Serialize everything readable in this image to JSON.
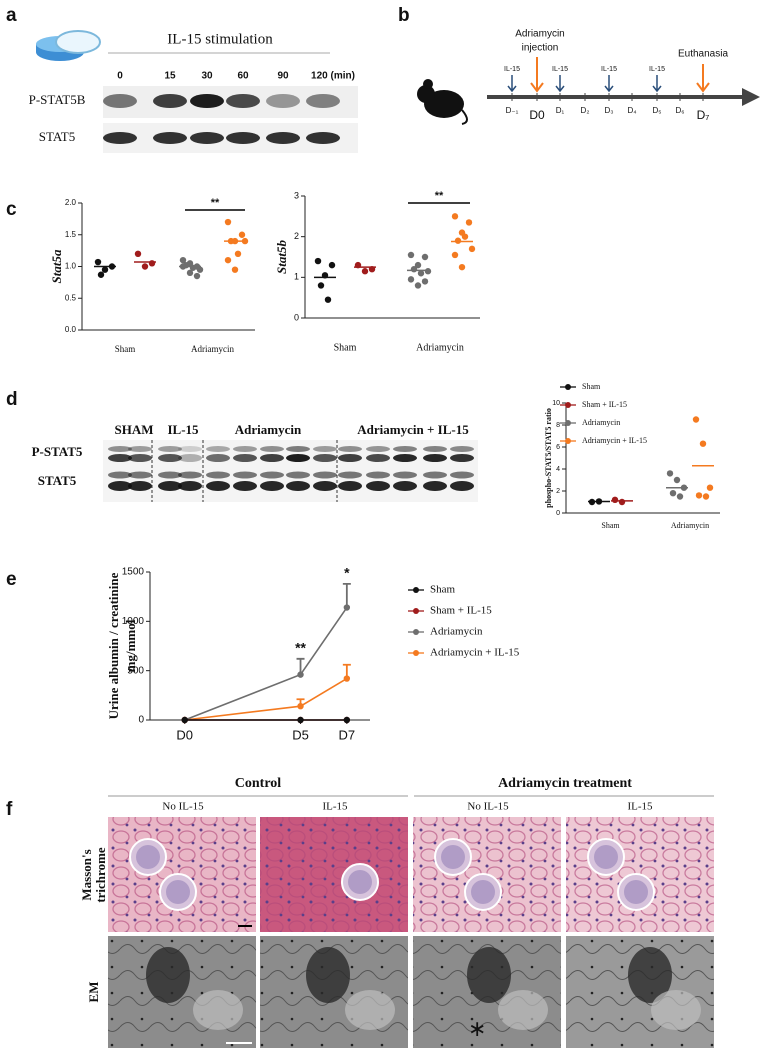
{
  "panel_a": {
    "label": "a",
    "title": "IL-15 stimulation",
    "timepoints": [
      "0",
      "15",
      "30",
      "60",
      "90",
      "120 (min)"
    ],
    "rows": [
      "P-STAT5B",
      "STAT5"
    ]
  },
  "panel_b": {
    "label": "b",
    "injection": [
      "Adriamycin",
      "injection"
    ],
    "euthanasia": "Euthanasia",
    "il15_marks": [
      "IL-15",
      "IL-15",
      "IL-15",
      "IL-15"
    ],
    "days": [
      "D₋₁",
      "D0",
      "D₁",
      "D₂",
      "D₃",
      "D₄",
      "D₅",
      "D₆",
      "D₇"
    ]
  },
  "panel_c": {
    "label": "c"
  },
  "panel_d": {
    "label": "d",
    "blot_groups": [
      "SHAM",
      "IL-15",
      "Adriamycin",
      "Adriamycin + IL-15"
    ],
    "rows": [
      "P-STAT5",
      "STAT5"
    ]
  },
  "panel_e": {
    "label": "e"
  },
  "panel_f": {
    "label": "f",
    "conditions": [
      "Control",
      "Adriamycin treatment"
    ],
    "columns": [
      "No IL-15",
      "IL-15",
      "No IL-15",
      "IL-15"
    ],
    "rows": [
      [
        "Masson's",
        "trichrome"
      ],
      [
        "EM"
      ]
    ]
  },
  "chart_data": [
    {
      "type": "dot",
      "ylabel": "Stat5a",
      "ylim": [
        0,
        2
      ],
      "yticks": [
        {
          "value": 0,
          "label": "0.0"
        },
        {
          "value": 0.5,
          "label": "0.5"
        },
        {
          "value": 1,
          "label": "1.0"
        },
        {
          "value": 1.5,
          "label": "1.5"
        },
        {
          "value": 2,
          "label": "2.0"
        }
      ],
      "groups": [
        {
          "label": "Sham",
          "series": [
            {
              "color": "#111111",
              "values": [
                1.07,
                0.95,
                1.0,
                0.87
              ],
              "mean": 1.0
            },
            {
              "color": "#a01c1c",
              "values": [
                1.2,
                1.0,
                1.05
              ],
              "mean": 1.07
            }
          ]
        },
        {
          "label": "Adriamycin",
          "series": [
            {
              "color": "#6e6e6e",
              "values": [
                1.1,
                1.05,
                1.0,
                1.02,
                0.98,
                0.95,
                1.0,
                0.9,
                0.85
              ],
              "mean": 1.0
            },
            {
              "color": "#f47a20",
              "values": [
                1.7,
                1.4,
                1.5,
                1.4,
                1.2,
                1.4,
                1.1,
                0.95
              ],
              "mean": 1.4
            }
          ]
        }
      ],
      "annotation": "**"
    },
    {
      "type": "dot",
      "ylabel": "Stat5b",
      "ylim": [
        0,
        3
      ],
      "yticks": [
        0,
        1,
        2,
        3
      ],
      "groups": [
        {
          "label": "Sham",
          "series": [
            {
              "color": "#111111",
              "values": [
                1.4,
                1.05,
                1.3,
                0.8,
                0.45
              ],
              "mean": 1.0
            },
            {
              "color": "#a01c1c",
              "values": [
                1.3,
                1.15,
                1.2
              ],
              "mean": 1.25
            }
          ]
        },
        {
          "label": "Adriamycin",
          "series": [
            {
              "color": "#6e6e6e",
              "values": [
                1.55,
                1.3,
                1.5,
                1.2,
                1.1,
                1.15,
                0.95,
                0.8,
                0.9
              ],
              "mean": 1.17
            },
            {
              "color": "#f47a20",
              "values": [
                2.5,
                2.1,
                2.35,
                1.9,
                2.0,
                1.7,
                1.55,
                1.25
              ],
              "mean": 1.88
            }
          ]
        }
      ],
      "annotation": "**"
    },
    {
      "type": "dot",
      "ylabel": "phospho-STAT5/STAT5 ratio",
      "ylim": [
        0,
        10
      ],
      "yticks": [
        0,
        2,
        4,
        6,
        8,
        10
      ],
      "groups": [
        {
          "label": "Sham",
          "series": [
            {
              "name": "Sham",
              "color": "#111111",
              "values": [
                1.0,
                1.05
              ],
              "mean": 1.05
            },
            {
              "name": "Sham + IL-15",
              "color": "#a01c1c",
              "values": [
                1.2,
                1.0
              ],
              "mean": 1.1
            }
          ]
        },
        {
          "label": "Adriamycin",
          "series": [
            {
              "name": "Adriamycin",
              "color": "#6e6e6e",
              "values": [
                3.6,
                3.0,
                2.3,
                1.8,
                1.5
              ],
              "mean": 2.3
            },
            {
              "name": "Adriamycin + IL-15",
              "color": "#f47a20",
              "values": [
                8.5,
                6.3,
                2.3,
                1.6,
                1.5
              ],
              "mean": 4.3
            }
          ]
        }
      ]
    },
    {
      "type": "line",
      "ylabel": [
        "Urine albumin / creatinine",
        "mg/mmol"
      ],
      "x": [
        0,
        5,
        7
      ],
      "xlim": [
        -1.5,
        8
      ],
      "xticks": [
        {
          "value": 0,
          "label": "D0"
        },
        {
          "value": 5,
          "label": "D5"
        },
        {
          "value": 7,
          "label": "D7"
        }
      ],
      "ylim": [
        0,
        1500
      ],
      "yticks": [
        0,
        500,
        1000,
        1500
      ],
      "series": [
        {
          "name": "Sham",
          "color": "#111111",
          "values": [
            0,
            0,
            0
          ]
        },
        {
          "name": "Sham + IL-15",
          "color": "#a01c1c",
          "values": [
            0,
            0,
            0
          ]
        },
        {
          "name": "Adriamycin",
          "color": "#6e6e6e",
          "values": [
            0,
            460,
            1140
          ],
          "errors": [
            null,
            160,
            240
          ]
        },
        {
          "name": "Adriamycin + IL-15",
          "color": "#f47a20",
          "values": [
            0,
            140,
            420
          ],
          "errors": [
            null,
            70,
            140
          ]
        }
      ],
      "annotations": [
        {
          "x": 5,
          "text": "**"
        },
        {
          "x": 7,
          "text": "*"
        }
      ]
    }
  ]
}
